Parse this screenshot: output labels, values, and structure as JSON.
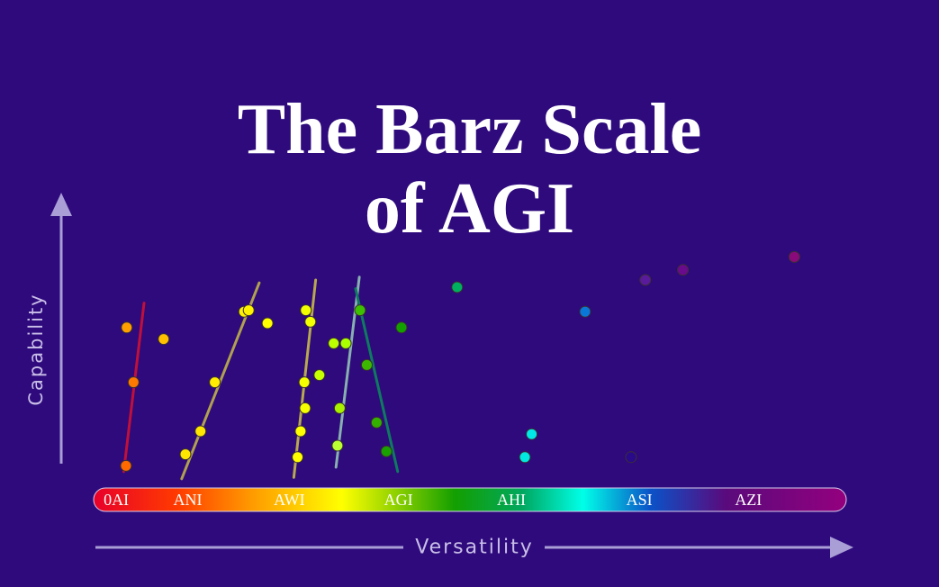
{
  "title_lines": [
    "The Barz Scale",
    "of AGI"
  ],
  "colors": {
    "background": "#2e0a7c",
    "axis": "#a99ed6",
    "label": "#c9bee8"
  },
  "chart_data": {
    "type": "scatter",
    "title": "The Barz Scale of AGI",
    "xlabel": "Versatility",
    "ylabel": "Capability",
    "xlim": [
      0,
      100
    ],
    "ylim": [
      0,
      100
    ],
    "grid": false,
    "scale_bar": {
      "labels": [
        "0AI",
        "ANI",
        "AWI",
        "AGI",
        "AHI",
        "ASI",
        "AZI"
      ],
      "positions": [
        3,
        12.5,
        26,
        40.5,
        55.5,
        72.5,
        87
      ],
      "gradient": [
        {
          "pos": 0,
          "color": "#e8002a"
        },
        {
          "pos": 11,
          "color": "#ff3a00"
        },
        {
          "pos": 21,
          "color": "#ff9a00"
        },
        {
          "pos": 33,
          "color": "#ffff00"
        },
        {
          "pos": 48,
          "color": "#139f00"
        },
        {
          "pos": 57,
          "color": "#00a860"
        },
        {
          "pos": 65,
          "color": "#00ffe8"
        },
        {
          "pos": 74,
          "color": "#0b52c8"
        },
        {
          "pos": 84,
          "color": "#5a0a7c"
        },
        {
          "pos": 100,
          "color": "#94007e"
        }
      ]
    },
    "points": [
      {
        "x": 4.3,
        "y": 5.5,
        "color": "#ff6a00"
      },
      {
        "x": 5.3,
        "y": 34.5,
        "color": "#ff7a00"
      },
      {
        "x": 4.4,
        "y": 53.5,
        "color": "#ffa000"
      },
      {
        "x": 9.3,
        "y": 49.5,
        "color": "#ffc000"
      },
      {
        "x": 12.2,
        "y": 9.5,
        "color": "#ffe600"
      },
      {
        "x": 14.2,
        "y": 17.5,
        "color": "#ffe600"
      },
      {
        "x": 16.1,
        "y": 34.5,
        "color": "#ffec00"
      },
      {
        "x": 20.0,
        "y": 59,
        "color": "#fff200"
      },
      {
        "x": 20.6,
        "y": 59.5,
        "color": "#fff200"
      },
      {
        "x": 23.1,
        "y": 55,
        "color": "#ffff00"
      },
      {
        "x": 27.1,
        "y": 8.5,
        "color": "#ffff00"
      },
      {
        "x": 27.5,
        "y": 17.5,
        "color": "#ffff00"
      },
      {
        "x": 28.1,
        "y": 25.5,
        "color": "#f6ff00"
      },
      {
        "x": 28.0,
        "y": 34.5,
        "color": "#f6ff00"
      },
      {
        "x": 28.2,
        "y": 59.5,
        "color": "#f2ff00"
      },
      {
        "x": 28.8,
        "y": 55.5,
        "color": "#f2ff00"
      },
      {
        "x": 30.0,
        "y": 37,
        "color": "#c6ff00"
      },
      {
        "x": 31.9,
        "y": 48,
        "color": "#bbff00"
      },
      {
        "x": 33.5,
        "y": 48,
        "color": "#aaff00"
      },
      {
        "x": 32.4,
        "y": 12.5,
        "color": "#bbff33"
      },
      {
        "x": 32.7,
        "y": 25.5,
        "color": "#a8f000"
      },
      {
        "x": 35.4,
        "y": 59.5,
        "color": "#3cc000"
      },
      {
        "x": 36.3,
        "y": 40.5,
        "color": "#3db800"
      },
      {
        "x": 37.6,
        "y": 20.5,
        "color": "#33b000"
      },
      {
        "x": 38.9,
        "y": 10.5,
        "color": "#1aa000"
      },
      {
        "x": 40.9,
        "y": 53.5,
        "color": "#139f00"
      },
      {
        "x": 48.3,
        "y": 67.5,
        "color": "#00b060"
      },
      {
        "x": 57.3,
        "y": 8.5,
        "color": "#00e8e0"
      },
      {
        "x": 58.2,
        "y": 16.5,
        "color": "#00e8e8"
      },
      {
        "x": 65.3,
        "y": 59,
        "color": "#0a78d8"
      },
      {
        "x": 71.4,
        "y": 8.5,
        "color": "#2a0a8a"
      },
      {
        "x": 73.3,
        "y": 70,
        "color": "#5a1a9c"
      },
      {
        "x": 78.3,
        "y": 73.5,
        "color": "#6a0a8c"
      },
      {
        "x": 93.1,
        "y": 78,
        "color": "#8a0a7c"
      }
    ],
    "trend_lines": [
      {
        "from": [
          4.0,
          3.5
        ],
        "to": [
          6.7,
          62
        ],
        "color": "#c0103a"
      },
      {
        "from": [
          11.7,
          1
        ],
        "to": [
          22.0,
          69
        ],
        "color": "#b0a050"
      },
      {
        "from": [
          26.6,
          1.5
        ],
        "to": [
          29.5,
          70
        ],
        "color": "#b8a850"
      },
      {
        "from": [
          32.2,
          5
        ],
        "to": [
          35.3,
          71
        ],
        "color": "#88b0b0"
      },
      {
        "from": [
          34.8,
          67
        ],
        "to": [
          40.4,
          3.5
        ],
        "color": "#0e7a60"
      }
    ]
  }
}
